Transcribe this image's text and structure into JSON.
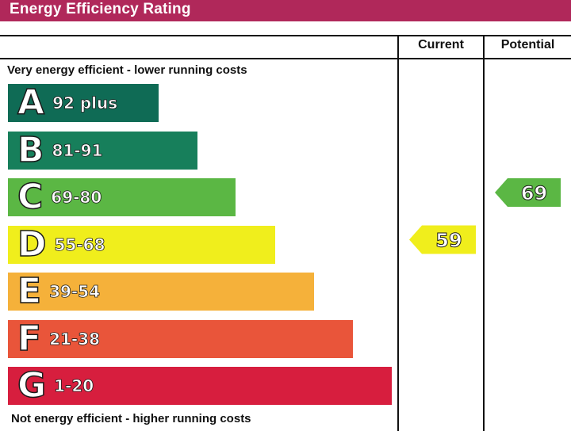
{
  "title": "Energy Efficiency Rating",
  "columns": {
    "current": "Current",
    "potential": "Potential"
  },
  "notes": {
    "top": "Very energy efficient - lower running costs",
    "bottom": "Not energy efficient - higher running costs"
  },
  "colors": {
    "header": "#b0285a",
    "A": "#0f6b55",
    "B": "#177f5b",
    "C": "#5bb744",
    "D": "#f0ee1c",
    "E": "#f5b13a",
    "F": "#e9553a",
    "G": "#d71e3e"
  },
  "chart_data": {
    "type": "bar",
    "title": "Energy Efficiency Rating",
    "categories": [
      "A",
      "B",
      "C",
      "D",
      "E",
      "F",
      "G"
    ],
    "ranges": [
      "92 plus",
      "81-91",
      "69-80",
      "55-68",
      "39-54",
      "21-38",
      "1-20"
    ],
    "current": {
      "value": 59,
      "band": "D"
    },
    "potential": {
      "value": 69,
      "band": "C"
    }
  }
}
